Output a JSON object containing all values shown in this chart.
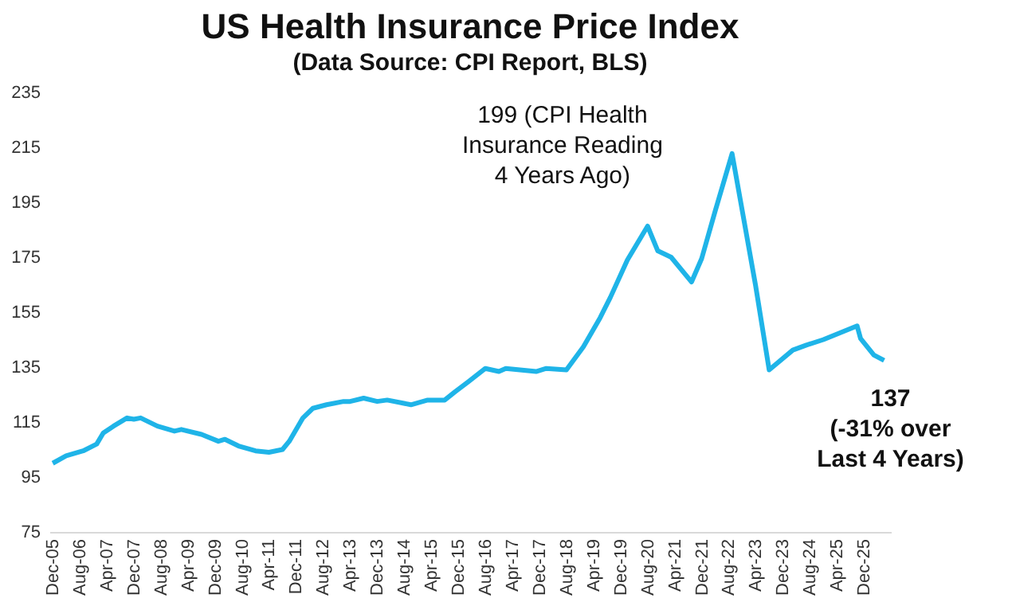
{
  "chart_data": {
    "type": "line",
    "title": "US Health Insurance Price Index",
    "subtitle": "(Data Source: CPI Report, BLS)",
    "x": [
      "2005-12",
      "2006-04",
      "2006-09",
      "2007-01",
      "2007-03",
      "2007-06",
      "2007-10",
      "2007-12",
      "2008-02",
      "2008-07",
      "2008-12",
      "2009-02",
      "2009-08",
      "2010-01",
      "2010-03",
      "2010-07",
      "2010-12",
      "2011-04",
      "2011-08",
      "2011-10",
      "2012-02",
      "2012-05",
      "2012-09",
      "2013-02",
      "2013-04",
      "2013-08",
      "2013-12",
      "2014-03",
      "2014-10",
      "2015-03",
      "2015-08",
      "2015-11",
      "2016-03",
      "2016-08",
      "2016-12",
      "2017-02",
      "2017-11",
      "2018-02",
      "2018-08",
      "2019-01",
      "2019-06",
      "2019-09",
      "2020-02",
      "2020-08",
      "2020-11",
      "2021-03",
      "2021-09",
      "2021-12",
      "2022-04",
      "2022-09",
      "2023-04",
      "2023-08",
      "2024-03",
      "2024-07",
      "2024-12",
      "2025-10",
      "2025-11",
      "2026-03",
      "2026-06"
    ],
    "series": [
      {
        "color": "#1fb4e8",
        "values": [
          100,
          102.7,
          104.5,
          107,
          111,
          113.5,
          116.5,
          116,
          116.5,
          113.5,
          111.7,
          112.3,
          110.5,
          108,
          108.7,
          106.3,
          104.5,
          104,
          105,
          108,
          116.5,
          120,
          121.3,
          122.5,
          122.5,
          123.7,
          122.5,
          123,
          121.3,
          123,
          123,
          126,
          129.7,
          134.5,
          133.4,
          134.5,
          133.4,
          134.5,
          134,
          142.4,
          153,
          160.4,
          174,
          186.3,
          177.3,
          175,
          166,
          174.5,
          191.7,
          212.7,
          164.6,
          134,
          141.2,
          143,
          145,
          150,
          145.4,
          139.4,
          137.4
        ]
      }
    ],
    "ylim": [
      75,
      235
    ],
    "yticks": [
      75,
      95,
      115,
      135,
      155,
      175,
      195,
      215,
      235
    ],
    "xlim": [
      "2005-11",
      "2026-08"
    ],
    "xticks": [
      {
        "value": "2005-12",
        "label": "Dec-05"
      },
      {
        "value": "2006-08",
        "label": "Aug-06"
      },
      {
        "value": "2007-04",
        "label": "Apr-07"
      },
      {
        "value": "2007-12",
        "label": "Dec-07"
      },
      {
        "value": "2008-08",
        "label": "Aug-08"
      },
      {
        "value": "2009-04",
        "label": "Apr-09"
      },
      {
        "value": "2009-12",
        "label": "Dec-09"
      },
      {
        "value": "2010-08",
        "label": "Aug-10"
      },
      {
        "value": "2011-04",
        "label": "Apr-11"
      },
      {
        "value": "2011-12",
        "label": "Dec-11"
      },
      {
        "value": "2012-08",
        "label": "Aug-12"
      },
      {
        "value": "2013-04",
        "label": "Apr-13"
      },
      {
        "value": "2013-12",
        "label": "Dec-13"
      },
      {
        "value": "2014-08",
        "label": "Aug-14"
      },
      {
        "value": "2015-04",
        "label": "Apr-15"
      },
      {
        "value": "2015-12",
        "label": "Dec-15"
      },
      {
        "value": "2016-08",
        "label": "Aug-16"
      },
      {
        "value": "2017-04",
        "label": "Apr-17"
      },
      {
        "value": "2017-12",
        "label": "Dec-17"
      },
      {
        "value": "2018-08",
        "label": "Aug-18"
      },
      {
        "value": "2019-04",
        "label": "Apr-19"
      },
      {
        "value": "2019-12",
        "label": "Dec-19"
      },
      {
        "value": "2020-08",
        "label": "Aug-20"
      },
      {
        "value": "2021-04",
        "label": "Apr-21"
      },
      {
        "value": "2021-12",
        "label": "Dec-21"
      },
      {
        "value": "2022-08",
        "label": "Aug-22"
      },
      {
        "value": "2023-04",
        "label": "Apr-23"
      },
      {
        "value": "2023-12",
        "label": "Dec-23"
      },
      {
        "value": "2024-08",
        "label": "Aug-24"
      },
      {
        "value": "2025-04",
        "label": "Apr-25"
      },
      {
        "value": "2025-12",
        "label": "Dec-25"
      }
    ],
    "annotations": [
      {
        "text": "199 (CPI Health\nInsurance Reading\n4 Years Ago)",
        "x": "2022-06",
        "y": 199
      },
      {
        "text": "137\n(-31% over\nLast 4 Years)",
        "x": "2026-06",
        "y": 137
      }
    ],
    "grid": false,
    "legend": false,
    "marker": "none",
    "line_style": "solid"
  }
}
